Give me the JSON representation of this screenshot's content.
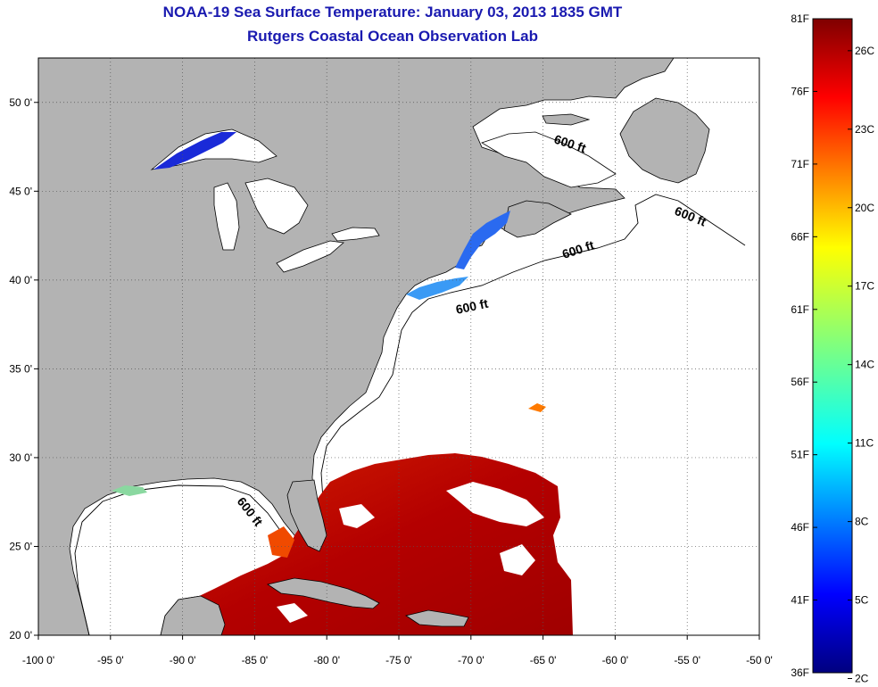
{
  "header": {
    "title": "NOAA-19 Sea Surface Temperature:  January 03, 2013 1835 GMT",
    "subtitle": "Rutgers Coastal Ocean Observation Lab"
  },
  "map": {
    "lon_range": [
      -100,
      -50
    ],
    "lat_range": [
      20,
      52.5
    ],
    "x_ticks": [
      "-100 0'",
      "-95 0'",
      "-90 0'",
      "-85 0'",
      "-80 0'",
      "-75 0'",
      "-70 0'",
      "-65 0'",
      "-60 0'",
      "-55 0'",
      "-50 0'"
    ],
    "y_ticks": [
      "20 0'",
      "25 0'",
      "30 0'",
      "35 0'",
      "40 0'",
      "45 0'",
      "50 0'"
    ],
    "grid": true,
    "land_color": "#b3b3b3",
    "contour_labels": [
      "600 ft",
      "600 ft",
      "600 ft",
      "600 ft",
      "600 ft"
    ]
  },
  "colorbar": {
    "fahrenheit_labels": [
      "81F",
      "76F",
      "71F",
      "66F",
      "61F",
      "56F",
      "51F",
      "46F",
      "41F",
      "36F"
    ],
    "celsius_labels": [
      "26C",
      "23C",
      "20C",
      "17C",
      "14C",
      "11C",
      "8C",
      "5C",
      "2C"
    ],
    "range_f": [
      36,
      81
    ],
    "colormap": "jet"
  }
}
